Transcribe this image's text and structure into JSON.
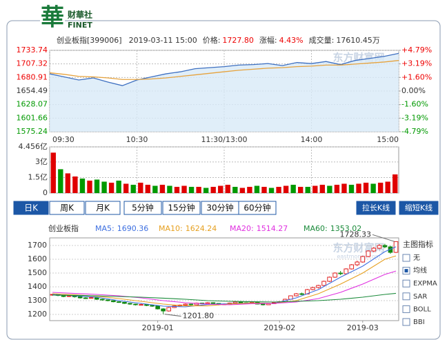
{
  "logo": {
    "mark": "華",
    "name": "财華社",
    "brand": "FINET"
  },
  "header": {
    "symbol": "创业板指[399006]",
    "time": "2019-03-11 15:00",
    "price_label": "价格:",
    "price": "1727.80",
    "change_label": "涨幅:",
    "change": "4.43%",
    "volume_label": "成交量:",
    "volume": "17610.45万"
  },
  "watermark": {
    "name": "东方财富网",
    "url": "eastmoney.com"
  },
  "chart_data": [
    {
      "type": "line",
      "area": true,
      "grid": true,
      "x": [
        0,
        10,
        20,
        30,
        40,
        50,
        60,
        70,
        80,
        90,
        100,
        110,
        120,
        130,
        140,
        150,
        160,
        170,
        180,
        190,
        200,
        210,
        220,
        230,
        240
      ],
      "xlim": [
        0,
        240
      ],
      "xticks": [
        {
          "value": 0,
          "label": "09:30"
        },
        {
          "value": 60,
          "label": "10:30"
        },
        {
          "value": 120,
          "label": "11:30/13:00"
        },
        {
          "value": 180,
          "label": "14:00"
        },
        {
          "value": 240,
          "label": "15:00"
        }
      ],
      "ylim": [
        1575.24,
        1733.74
      ],
      "yticks": [
        1733.74,
        1707.32,
        1680.91,
        1654.49,
        1628.07,
        1601.66,
        1575.24
      ],
      "y2lim": [
        -4.79,
        4.79
      ],
      "y2ticks": [
        {
          "value": 4.79,
          "label": "+4.79%"
        },
        {
          "value": 3.19,
          "label": "+3.19%"
        },
        {
          "value": 1.6,
          "label": "+1.60%"
        },
        {
          "value": 0,
          "label": "0.00%"
        },
        {
          "value": -1.6,
          "label": "-1.60%"
        },
        {
          "value": -3.19,
          "label": "-3.19%"
        },
        {
          "value": -4.79,
          "label": "-4.79%"
        }
      ],
      "series": [
        {
          "color": "#3d6fc0",
          "values": [
            1688,
            1682,
            1676,
            1680,
            1672,
            1665,
            1676,
            1682,
            1688,
            1692,
            1698,
            1700,
            1702,
            1705,
            1706,
            1708,
            1704,
            1710,
            1708,
            1712,
            1706,
            1714,
            1718,
            1722,
            1727.8
          ]
        },
        {
          "color": "#e6a23c",
          "values": [
            1690,
            1687,
            1683,
            1682,
            1680,
            1677,
            1677,
            1678,
            1680,
            1683,
            1686,
            1689,
            1692,
            1695,
            1697,
            1699,
            1700,
            1702,
            1703,
            1705,
            1705,
            1707,
            1709,
            1711,
            1714
          ]
        }
      ]
    },
    {
      "type": "bar",
      "grid": true,
      "ylim": [
        0,
        4.456
      ],
      "yticks": [
        {
          "value": 4.456,
          "label": "4.456亿"
        },
        {
          "value": 3,
          "label": "3亿"
        },
        {
          "value": 1.5,
          "label": "1.5亿"
        },
        0
      ],
      "values": [
        3.9,
        2.3,
        1.9,
        1.6,
        1.4,
        1.2,
        1.3,
        1.1,
        1.0,
        1.2,
        0.9,
        0.8,
        1.0,
        0.8,
        0.7,
        0.8,
        0.7,
        0.6,
        0.7,
        0.6,
        0.6,
        0.5,
        0.6,
        0.7,
        0.8,
        0.6,
        0.5,
        0.6,
        0.7,
        0.6,
        0.5,
        0.6,
        0.7,
        0.8,
        0.6,
        0.6,
        0.7,
        0.8,
        0.7,
        0.8,
        0.9,
        0.8,
        0.9,
        1.0,
        0.9,
        1.0,
        1.1,
        1.8
      ],
      "colors": [
        "#e00000",
        "#009900",
        "#e00000",
        "#e00000",
        "#009900",
        "#e00000",
        "#009900",
        "#009900",
        "#e00000",
        "#009900",
        "#e00000",
        "#009900",
        "#e00000",
        "#e00000",
        "#009900",
        "#e00000",
        "#009900",
        "#e00000",
        "#e00000",
        "#009900",
        "#e00000",
        "#009900",
        "#e00000",
        "#e00000",
        "#e00000",
        "#009900",
        "#e00000",
        "#e00000",
        "#009900",
        "#e00000",
        "#009900",
        "#e00000",
        "#e00000",
        "#009900",
        "#e00000",
        "#009900",
        "#e00000",
        "#e00000",
        "#009900",
        "#e00000",
        "#e00000",
        "#009900",
        "#e00000",
        "#e00000",
        "#009900",
        "#e00000",
        "#e00000",
        "#e00000"
      ]
    },
    {
      "type": "candlestick",
      "title": "创业板指",
      "grid": true,
      "up_color": "#e22222",
      "down_color": "#118811",
      "ylim": [
        1155,
        1755
      ],
      "yticks": [
        1200,
        1300,
        1400,
        1500,
        1600,
        1700
      ],
      "categories": [
        null,
        null,
        null,
        null,
        null,
        null,
        null,
        null,
        null,
        null,
        null,
        null,
        null,
        null,
        null,
        null,
        null,
        null,
        null,
        "2019-01",
        null,
        null,
        null,
        null,
        null,
        null,
        null,
        null,
        null,
        null,
        null,
        null,
        null,
        null,
        null,
        null,
        null,
        null,
        null,
        null,
        null,
        "2019-02",
        null,
        null,
        null,
        null,
        null,
        null,
        null,
        null,
        null,
        null,
        null,
        null,
        null,
        null,
        "2019-03",
        null,
        null,
        null,
        null,
        null,
        null
      ],
      "candles": [
        [
          1340,
          1350,
          1335,
          1345
        ],
        [
          1345,
          1348,
          1332,
          1338
        ],
        [
          1338,
          1340,
          1325,
          1330
        ],
        [
          1330,
          1340,
          1326,
          1335
        ],
        [
          1335,
          1337,
          1322,
          1328
        ],
        [
          1328,
          1330,
          1315,
          1320
        ],
        [
          1320,
          1325,
          1312,
          1318
        ],
        [
          1318,
          1328,
          1315,
          1322
        ],
        [
          1322,
          1324,
          1305,
          1310
        ],
        [
          1310,
          1314,
          1300,
          1305
        ],
        [
          1305,
          1308,
          1295,
          1300
        ],
        [
          1300,
          1303,
          1288,
          1292
        ],
        [
          1292,
          1296,
          1284,
          1288
        ],
        [
          1288,
          1290,
          1276,
          1280
        ],
        [
          1280,
          1284,
          1270,
          1275
        ],
        [
          1275,
          1278,
          1265,
          1270
        ],
        [
          1270,
          1278,
          1266,
          1272
        ],
        [
          1272,
          1274,
          1260,
          1265
        ],
        [
          1265,
          1268,
          1255,
          1262
        ],
        [
          1262,
          1264,
          1236,
          1240
        ],
        [
          1240,
          1245,
          1201.8,
          1225
        ],
        [
          1225,
          1255,
          1220,
          1250
        ],
        [
          1250,
          1266,
          1246,
          1262
        ],
        [
          1262,
          1272,
          1258,
          1268
        ],
        [
          1268,
          1280,
          1264,
          1275
        ],
        [
          1275,
          1278,
          1265,
          1270
        ],
        [
          1270,
          1286,
          1268,
          1282
        ],
        [
          1282,
          1285,
          1274,
          1278
        ],
        [
          1278,
          1290,
          1275,
          1285
        ],
        [
          1285,
          1288,
          1276,
          1280
        ],
        [
          1280,
          1282,
          1266,
          1270
        ],
        [
          1270,
          1280,
          1268,
          1275
        ],
        [
          1275,
          1286,
          1272,
          1282
        ],
        [
          1282,
          1295,
          1280,
          1290
        ],
        [
          1290,
          1292,
          1281,
          1285
        ],
        [
          1285,
          1288,
          1276,
          1280
        ],
        [
          1280,
          1292,
          1278,
          1288
        ],
        [
          1288,
          1290,
          1272,
          1275
        ],
        [
          1275,
          1278,
          1265,
          1270
        ],
        [
          1270,
          1282,
          1268,
          1278
        ],
        [
          1278,
          1290,
          1276,
          1285
        ],
        [
          1285,
          1296,
          1282,
          1292
        ],
        [
          1292,
          1314,
          1290,
          1310
        ],
        [
          1310,
          1338,
          1308,
          1335
        ],
        [
          1335,
          1355,
          1330,
          1350
        ],
        [
          1350,
          1358,
          1340,
          1348
        ],
        [
          1348,
          1385,
          1346,
          1380
        ],
        [
          1380,
          1400,
          1375,
          1395
        ],
        [
          1395,
          1415,
          1388,
          1410
        ],
        [
          1410,
          1445,
          1405,
          1440
        ],
        [
          1440,
          1475,
          1435,
          1470
        ],
        [
          1470,
          1505,
          1465,
          1500
        ],
        [
          1500,
          1515,
          1485,
          1495
        ],
        [
          1495,
          1535,
          1490,
          1530
        ],
        [
          1530,
          1565,
          1525,
          1560
        ],
        [
          1560,
          1590,
          1550,
          1580
        ],
        [
          1580,
          1625,
          1575,
          1620
        ],
        [
          1620,
          1665,
          1615,
          1660
        ],
        [
          1660,
          1690,
          1650,
          1680
        ],
        [
          1680,
          1710,
          1672,
          1700
        ],
        [
          1700,
          1712,
          1680,
          1690
        ],
        [
          1690,
          1698,
          1640,
          1650
        ],
        [
          1650,
          1728.33,
          1645,
          1727.8
        ]
      ],
      "series": [
        {
          "name": "MA5:",
          "color": "#3d6fe0",
          "x": [
            0,
            4,
            8,
            12,
            16,
            20,
            24,
            28,
            32,
            36,
            40,
            44,
            48,
            52,
            56,
            60,
            62
          ],
          "values": [
            1345,
            1335,
            1325,
            1300,
            1280,
            1260,
            1255,
            1272,
            1278,
            1283,
            1279,
            1320,
            1380,
            1470,
            1550,
            1655,
            1690.36
          ]
        },
        {
          "name": "MA10:",
          "color": "#e6a020",
          "x": [
            0,
            4,
            8,
            12,
            16,
            20,
            24,
            28,
            32,
            36,
            40,
            44,
            48,
            52,
            56,
            60,
            62
          ],
          "values": [
            1350,
            1342,
            1332,
            1315,
            1295,
            1275,
            1262,
            1262,
            1276,
            1282,
            1280,
            1300,
            1350,
            1420,
            1500,
            1600,
            1624.24
          ]
        },
        {
          "name": "MA20:",
          "color": "#e030e0",
          "x": [
            0,
            4,
            8,
            12,
            16,
            20,
            24,
            28,
            32,
            36,
            40,
            44,
            48,
            52,
            56,
            60,
            62
          ],
          "values": [
            1360,
            1352,
            1345,
            1335,
            1320,
            1300,
            1285,
            1275,
            1270,
            1278,
            1280,
            1290,
            1315,
            1360,
            1420,
            1490,
            1514.27
          ]
        },
        {
          "name": "MA60:",
          "color": "#1a8a3a",
          "x": [
            0,
            4,
            8,
            12,
            16,
            20,
            24,
            28,
            32,
            36,
            40,
            44,
            48,
            52,
            56,
            60,
            62
          ],
          "values": [
            1340,
            1338,
            1335,
            1330,
            1325,
            1318,
            1310,
            1300,
            1295,
            1292,
            1290,
            1295,
            1300,
            1310,
            1325,
            1345,
            1353.02
          ]
        }
      ],
      "high_label": "1728.33",
      "low_label": "1201.80"
    }
  ],
  "tabs": [
    "日K",
    "周K",
    "月K",
    "5分钟",
    "15分钟",
    "30分钟",
    "60分钟"
  ],
  "buttons": [
    "拉长K线",
    "缩短K线"
  ],
  "indicators": {
    "title": "主图指标",
    "options": [
      "无",
      "均线",
      "EXPMA",
      "SAR",
      "BOLL",
      "BBI"
    ]
  }
}
